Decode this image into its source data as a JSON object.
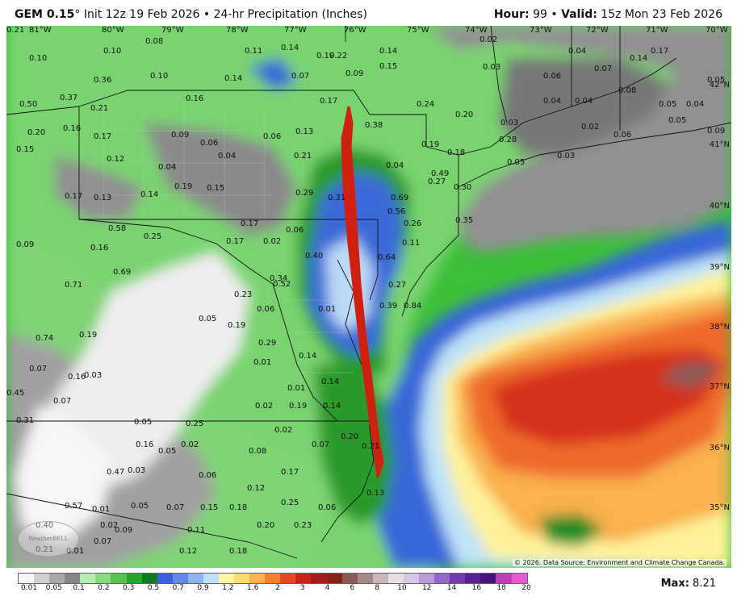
{
  "header": {
    "model": "GEM 0.15",
    "degree": "°",
    "init": "Init 12z 19 Feb 2026",
    "sep": "•",
    "product": "24-hr Precipitation (Inches)",
    "hour_label": "Hour:",
    "hour": "99",
    "valid_label": "Valid:",
    "valid": "15z Mon 23 Feb 2026"
  },
  "longitudes": [
    "81°W",
    "80°W",
    "79°W",
    "78°W",
    "77°W",
    "76°W",
    "75°W",
    "74°W",
    "73°W",
    "72°W",
    "71°W",
    "70°W"
  ],
  "latitudes": [
    "42°N",
    "41°N",
    "40°N",
    "39°N",
    "38°N",
    "37°N",
    "36°N",
    "35°N"
  ],
  "map_values": [
    "0.08",
    "0.10",
    "0.11",
    "0.14",
    "0.19",
    "0.22",
    "0.14",
    "0.15",
    "0.02",
    "0.04",
    "0.14",
    "0.17",
    "0.10",
    "0.36",
    "0.10",
    "0.14",
    "0.07",
    "0.09",
    "0.03",
    "0.06",
    "0.07",
    "0.05",
    "0.50",
    "0.37",
    "0.21",
    "0.16",
    "0.17",
    "0.24",
    "0.20",
    "0.04",
    "0.04",
    "0.08",
    "0.05",
    "0.04",
    "0.20",
    "0.16",
    "0.17",
    "0.09",
    "0.06",
    "0.06",
    "0.13",
    "0.38",
    "0.03",
    "0.02",
    "0.06",
    "0.05",
    "0.09",
    "0.15",
    "0.12",
    "0.04",
    "0.21",
    "0.19",
    "0.18",
    "0.28",
    "0.03",
    "0.05",
    "0.04",
    "0.19",
    "0.15",
    "0.04",
    "0.49",
    "0.27",
    "0.30",
    "0.17",
    "0.13",
    "0.14",
    "0.29",
    "0.31",
    "0.69",
    "0.56",
    "0.58",
    "0.25",
    "0.17",
    "0.06",
    "0.26",
    "0.35",
    "0.09",
    "0.16",
    "0.17",
    "0.02",
    "0.11",
    "0.40",
    "0.64",
    "0.69",
    "0.34",
    "0.52",
    "0.27",
    "0.71",
    "0.23",
    "0.06",
    "0.01",
    "0.39",
    "0.84",
    "0.74",
    "0.19",
    "0.05",
    "0.19",
    "0.29",
    "0.07",
    "0.16",
    "0.03",
    "0.01",
    "0.14",
    "0.45",
    "0.07",
    "0.01",
    "0.14",
    "0.31",
    "0.05",
    "0.02",
    "0.19",
    "0.14",
    "0.25",
    "0.02",
    "0.16",
    "0.02",
    "0.05",
    "0.08",
    "0.07",
    "0.20",
    "0.21",
    "0.47",
    "0.03",
    "0.06",
    "0.17",
    "0.12",
    "0.13",
    "0.57",
    "0.01",
    "0.05",
    "0.07",
    "0.15",
    "0.18",
    "0.25",
    "0.06",
    "0.40",
    "0.02",
    "0.09",
    "0.11",
    "0.20",
    "0.23",
    "0.21",
    "0.01",
    "0.07",
    "0.12",
    "0.18",
    "0.21"
  ],
  "credit": "© 2026. Data Source: Environment and Climate Change Canada.",
  "logo": "WeatherBELL",
  "legend": {
    "ticks": [
      "0.01",
      "0.05",
      "0.1",
      "0.2",
      "0.3",
      "0.5",
      "0.7",
      "0.9",
      "1.2",
      "1.6",
      "2",
      "3",
      "4",
      "6",
      "8",
      "10",
      "12",
      "14",
      "16",
      "18",
      "20"
    ],
    "colors": [
      "#f5f5f5",
      "#d0d0d0",
      "#a8a8a8",
      "#858585",
      "#b6eeb0",
      "#86dc7c",
      "#52c54a",
      "#27a42a",
      "#0d7d1f",
      "#3d5fdc",
      "#6188ea",
      "#8fb4f2",
      "#bfe0f7",
      "#fff5a0",
      "#fcd971",
      "#f9b04e",
      "#f2822f",
      "#e24b20",
      "#c8241a",
      "#a61c17",
      "#842318",
      "#8c5a55",
      "#a88888",
      "#c9b5b5",
      "#e8e0e0",
      "#d8c6ea",
      "#b89ad8",
      "#9368c6",
      "#7239b0",
      "#5a2098",
      "#44137e",
      "#c03cb8",
      "#e65ad6"
    ]
  },
  "max": {
    "label": "Max:",
    "value": "8.21"
  }
}
